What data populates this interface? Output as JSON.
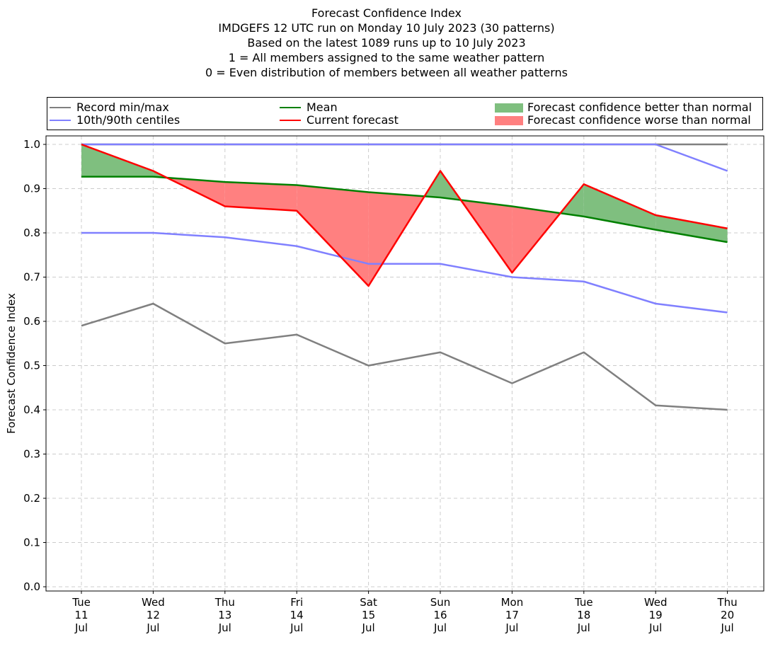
{
  "title_lines": [
    "Forecast Confidence Index",
    "IMDGEFS 12 UTC run on Monday 10 July 2023 (30 patterns)",
    "Based on the latest 1089 runs up to 10 July 2023",
    "1 = All members assigned to the same weather pattern",
    "0 = Even distribution of members between all weather patterns"
  ],
  "legend": {
    "record": "Record min/max",
    "centiles": "10th/90th centiles",
    "mean": "Mean",
    "current": "Current forecast",
    "better": "Forecast confidence better than normal",
    "worse": "Forecast confidence worse than normal"
  },
  "colors": {
    "record": "#808080",
    "centiles": "#8080ff",
    "mean": "#008000",
    "current": "#ff0000",
    "better": "#7fbf7f",
    "worse": "#ff8080",
    "grid": "#cccccc"
  },
  "chart_data": {
    "type": "line",
    "ylabel": "Forecast Confidence Index",
    "ylim": [
      0,
      1
    ],
    "yticks": [
      "0.0",
      "0.1",
      "0.2",
      "0.3",
      "0.4",
      "0.5",
      "0.6",
      "0.7",
      "0.8",
      "0.9",
      "1.0"
    ],
    "grid": true,
    "legend_position": "top",
    "categories": [
      [
        "Tue",
        "11",
        "Jul"
      ],
      [
        "Wed",
        "12",
        "Jul"
      ],
      [
        "Thu",
        "13",
        "Jul"
      ],
      [
        "Fri",
        "14",
        "Jul"
      ],
      [
        "Sat",
        "15",
        "Jul"
      ],
      [
        "Sun",
        "16",
        "Jul"
      ],
      [
        "Mon",
        "17",
        "Jul"
      ],
      [
        "Tue",
        "18",
        "Jul"
      ],
      [
        "Wed",
        "19",
        "Jul"
      ],
      [
        "Thu",
        "20",
        "Jul"
      ]
    ],
    "series": [
      {
        "name": "Record min/max",
        "key": "record_max",
        "values": [
          1.0,
          1.0,
          1.0,
          1.0,
          1.0,
          1.0,
          1.0,
          1.0,
          1.0,
          1.0
        ]
      },
      {
        "name": "Record min/max",
        "key": "record_min",
        "values": [
          0.59,
          0.64,
          0.55,
          0.57,
          0.5,
          0.53,
          0.46,
          0.53,
          0.41,
          0.4
        ]
      },
      {
        "name": "10th/90th centiles",
        "key": "p90",
        "values": [
          1.0,
          1.0,
          1.0,
          1.0,
          1.0,
          1.0,
          1.0,
          1.0,
          1.0,
          0.94
        ]
      },
      {
        "name": "10th/90th centiles",
        "key": "p10",
        "values": [
          0.8,
          0.8,
          0.79,
          0.77,
          0.73,
          0.73,
          0.7,
          0.69,
          0.64,
          0.62
        ]
      },
      {
        "name": "Mean",
        "key": "mean",
        "values": [
          0.927,
          0.927,
          0.915,
          0.908,
          0.892,
          0.88,
          0.86,
          0.837,
          0.807,
          0.779
        ]
      },
      {
        "name": "Current forecast",
        "key": "current",
        "values": [
          1.0,
          0.94,
          0.86,
          0.85,
          0.68,
          0.94,
          0.71,
          0.91,
          0.84,
          0.81
        ]
      }
    ]
  }
}
